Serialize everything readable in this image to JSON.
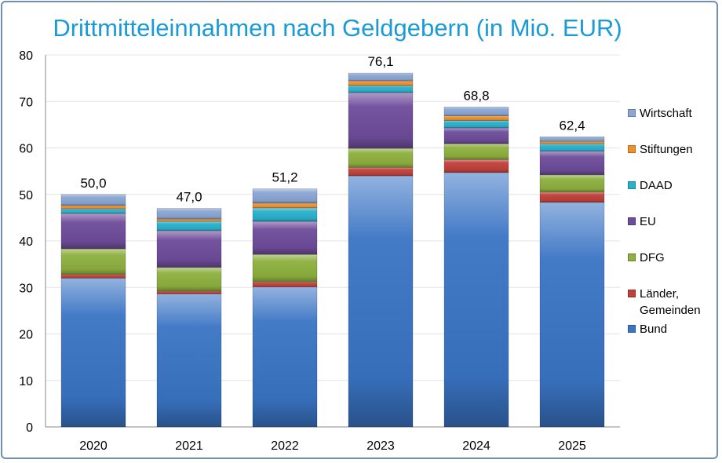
{
  "chart_data": {
    "type": "bar",
    "stacked": true,
    "title": "Drittmitteleinnahmen nach Geldgebern (in Mio. EUR)",
    "xlabel": "",
    "ylabel": "",
    "ylim": [
      0,
      80
    ],
    "yticks": [
      0,
      10,
      20,
      30,
      40,
      50,
      60,
      70,
      80
    ],
    "grid": true,
    "legend_position": "right",
    "categories": [
      "2020",
      "2021",
      "2022",
      "2023",
      "2024",
      "2025"
    ],
    "totals_labels": [
      "50,0",
      "47,0",
      "51,2",
      "76,1",
      "68,8",
      "62,4"
    ],
    "series": [
      {
        "name": "Bund",
        "color": "#3a74c4",
        "values": [
          32.0,
          28.6,
          30.1,
          54.0,
          54.7,
          48.3
        ]
      },
      {
        "name": "Länder, Gemeinden",
        "color": "#c0403a",
        "values": [
          0.8,
          0.6,
          1.1,
          1.8,
          2.8,
          2.2
        ]
      },
      {
        "name": "DFG",
        "color": "#8db03e",
        "values": [
          5.5,
          5.1,
          5.9,
          4.1,
          3.4,
          3.7
        ]
      },
      {
        "name": "EU",
        "color": "#6e4c9a",
        "values": [
          7.6,
          7.9,
          7.1,
          12.0,
          3.4,
          5.1
        ]
      },
      {
        "name": "DAAD",
        "color": "#2ab0cc",
        "values": [
          1.0,
          2.0,
          2.9,
          1.5,
          1.6,
          1.6
        ]
      },
      {
        "name": "Stiftungen",
        "color": "#f0902a",
        "values": [
          0.7,
          0.5,
          1.0,
          1.0,
          1.0,
          0.5
        ]
      },
      {
        "name": "Wirtschaft",
        "color": "#8aa6d4",
        "values": [
          2.4,
          2.3,
          3.1,
          1.7,
          1.9,
          1.0
        ]
      }
    ]
  }
}
